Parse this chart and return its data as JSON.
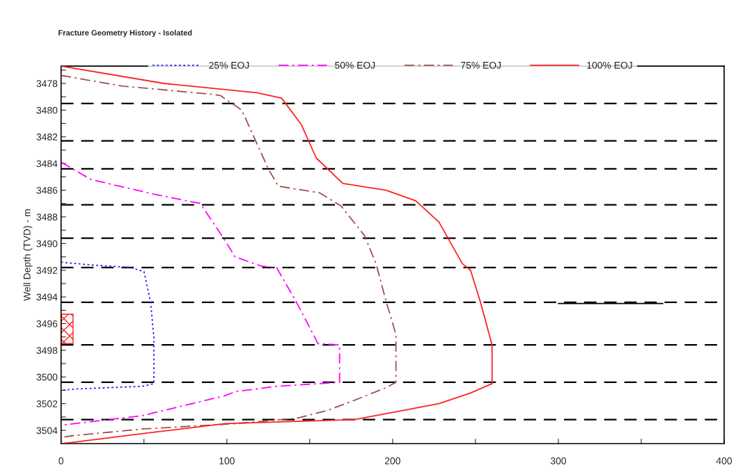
{
  "chart_data": {
    "type": "line",
    "title": "Fracture Geometry History - Isolated",
    "ylabel": "Well Depth (TVD) - m",
    "xlim": [
      0,
      400
    ],
    "xticks": [
      0,
      {
        "value": 50,
        "label": null
      },
      100,
      {
        "value": 150,
        "label": null
      },
      200,
      {
        "value": 250,
        "label": null
      },
      300,
      {
        "value": 350,
        "label": null
      },
      400
    ],
    "ylim": [
      3505,
      3476.7
    ],
    "yticks": [
      {
        "value": 3477,
        "label": null
      },
      3478,
      {
        "value": 3479,
        "label": null
      },
      3480,
      {
        "value": 3481,
        "label": null
      },
      3482,
      {
        "value": 3483,
        "label": null
      },
      3484,
      {
        "value": 3485,
        "label": null
      },
      3486,
      {
        "value": 3487,
        "label": null
      },
      3488,
      {
        "value": 3489,
        "label": null
      },
      3490,
      {
        "value": 3491,
        "label": null
      },
      3492,
      {
        "value": 3493,
        "label": null
      },
      3494,
      {
        "value": 3495,
        "label": null
      },
      3496,
      {
        "value": 3497,
        "label": null
      },
      3498,
      {
        "value": 3499,
        "label": null
      },
      3500,
      {
        "value": 3501,
        "label": null
      },
      3502,
      {
        "value": 3503,
        "label": null
      },
      3504,
      {
        "value": 3505,
        "label": null
      }
    ],
    "grid": false,
    "legend": "top",
    "marker": "none",
    "series": [
      {
        "name": "25% EOJ",
        "color": "#2020ff",
        "line_style": "dotted",
        "x": [
          0,
          18,
          42,
          50,
          54,
          56,
          56,
          49,
          9,
          0
        ],
        "values": [
          3491.4,
          3491.6,
          3491.8,
          3492.1,
          3494.4,
          3497.1,
          3500.5,
          3500.7,
          3500.9,
          3501.0
        ]
      },
      {
        "name": "50% EOJ",
        "color": "#ff00ff",
        "line_style": "dashdot",
        "x": [
          0,
          18,
          56,
          84,
          98,
          105,
          121,
          130,
          142,
          155,
          168,
          168,
          130,
          105,
          99,
          49,
          1
        ],
        "values": [
          3483.9,
          3485.2,
          3486.3,
          3487.0,
          3489.6,
          3491.0,
          3491.7,
          3491.8,
          3494.4,
          3497.5,
          3497.6,
          3500.4,
          3500.7,
          3501.1,
          3501.4,
          3502.9,
          3503.6
        ]
      },
      {
        "name": "75% EOJ",
        "color": "#a0504b",
        "line_style": "dashdot",
        "x": [
          0,
          37,
          90,
          96,
          109,
          125,
          131,
          156,
          169,
          183,
          190,
          196,
          202,
          202,
          196,
          180,
          161,
          142,
          105,
          49,
          7,
          2
        ],
        "values": [
          3477.4,
          3478.2,
          3478.8,
          3478.9,
          3480.0,
          3484.4,
          3485.7,
          3486.2,
          3487.2,
          3489.4,
          3491.5,
          3494.3,
          3496.8,
          3500.4,
          3500.8,
          3501.6,
          3502.5,
          3503.1,
          3503.5,
          3503.9,
          3504.4,
          3504.5
        ]
      },
      {
        "name": "100% EOJ",
        "color": "#ff2020",
        "line_style": "solid",
        "x": [
          0,
          62,
          118,
          133,
          145,
          154,
          170,
          196,
          214,
          228,
          242,
          247,
          253,
          260,
          260,
          247,
          228,
          177,
          99,
          52,
          7,
          0
        ],
        "values": [
          3476.7,
          3478.0,
          3478.7,
          3479.1,
          3481.1,
          3483.6,
          3485.5,
          3486.0,
          3486.8,
          3488.4,
          3491.5,
          3492.0,
          3494.4,
          3497.6,
          3500.5,
          3501.2,
          3502.0,
          3503.2,
          3503.5,
          3504.2,
          3504.9,
          3505.0
        ]
      },
      {
        "color": "#000000",
        "line_style": "solid",
        "x": [
          300,
          363
        ],
        "values": [
          3494.5,
          3494.5
        ]
      }
    ],
    "ref_lines": [
      {
        "axis": "y",
        "value": 3479.5,
        "color": "#000000",
        "line_style": "dashed"
      },
      {
        "axis": "y",
        "value": 3482.3,
        "color": "#000000",
        "line_style": "dashed"
      },
      {
        "axis": "y",
        "value": 3484.4,
        "color": "#000000",
        "line_style": "dashed"
      },
      {
        "axis": "y",
        "value": 3487.1,
        "color": "#000000",
        "line_style": "dashed"
      },
      {
        "axis": "y",
        "value": 3489.6,
        "color": "#000000",
        "line_style": "dashed"
      },
      {
        "axis": "y",
        "value": 3491.8,
        "color": "#000000",
        "line_style": "dashed"
      },
      {
        "axis": "y",
        "value": 3494.4,
        "color": "#000000",
        "line_style": "dashed"
      },
      {
        "axis": "y",
        "value": 3497.6,
        "color": "#000000",
        "line_style": "dashed"
      },
      {
        "axis": "y",
        "value": 3500.4,
        "color": "#000000",
        "line_style": "dashed"
      },
      {
        "axis": "y",
        "value": 3503.2,
        "color": "#000000",
        "line_style": "dashed"
      }
    ]
  }
}
